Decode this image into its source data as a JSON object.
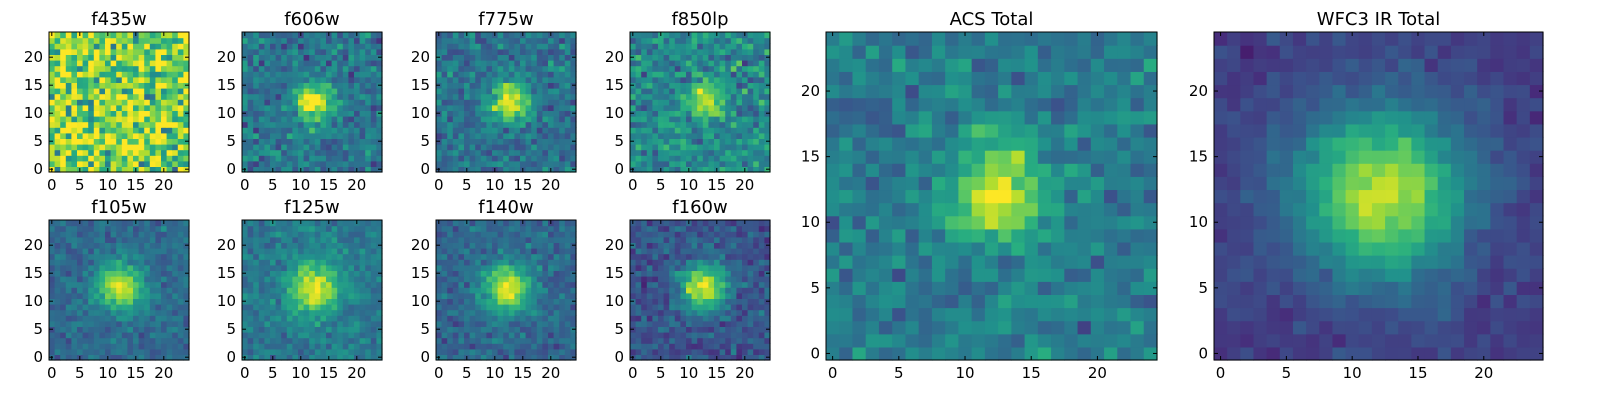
{
  "figure": {
    "colormap": "viridis",
    "panels_note": "Postage-stamp cutouts of one source in eight HST filters plus stacked ACS and WFC3 IR totals"
  },
  "chart_data": [
    {
      "type": "heatmap",
      "title": "f435w",
      "grid_size": 25,
      "xlim": [
        0,
        25
      ],
      "ylim": [
        0,
        25
      ],
      "xticks": [
        0,
        5,
        10,
        15,
        20
      ],
      "yticks": [
        0,
        5,
        10,
        15,
        20
      ],
      "center": [
        12,
        12
      ],
      "peak_amplitude": 0.0,
      "width_sigma": 3.2,
      "background": 0.8,
      "noise": 0.28
    },
    {
      "type": "heatmap",
      "title": "f606w",
      "grid_size": 25,
      "xlim": [
        0,
        25
      ],
      "ylim": [
        0,
        25
      ],
      "xticks": [
        0,
        5,
        10,
        15,
        20
      ],
      "yticks": [
        0,
        5,
        10,
        15,
        20
      ],
      "center": [
        12.3,
        12.0
      ],
      "peak_amplitude": 0.62,
      "width_sigma": 2.3,
      "background": 0.38,
      "noise": 0.13
    },
    {
      "type": "heatmap",
      "title": "f775w",
      "grid_size": 25,
      "xlim": [
        0,
        25
      ],
      "ylim": [
        0,
        25
      ],
      "xticks": [
        0,
        5,
        10,
        15,
        20
      ],
      "yticks": [
        0,
        5,
        10,
        15,
        20
      ],
      "center": [
        12.5,
        12.2
      ],
      "peak_amplitude": 0.6,
      "width_sigma": 2.4,
      "background": 0.38,
      "noise": 0.12
    },
    {
      "type": "heatmap",
      "title": "f850lp",
      "grid_size": 25,
      "xlim": [
        0,
        25
      ],
      "ylim": [
        0,
        25
      ],
      "xticks": [
        0,
        5,
        10,
        15,
        20
      ],
      "yticks": [
        0,
        5,
        10,
        15,
        20
      ],
      "center": [
        12.8,
        12.2
      ],
      "peak_amplitude": 0.5,
      "width_sigma": 2.2,
      "background": 0.47,
      "noise": 0.15
    },
    {
      "type": "heatmap",
      "title": "f105w",
      "grid_size": 25,
      "xlim": [
        0,
        25
      ],
      "ylim": [
        0,
        25
      ],
      "xticks": [
        0,
        5,
        10,
        15,
        20
      ],
      "yticks": [
        0,
        5,
        10,
        15,
        20
      ],
      "center": [
        12.2,
        12.6
      ],
      "peak_amplitude": 0.6,
      "width_sigma": 3.0,
      "background": 0.34,
      "noise": 0.08
    },
    {
      "type": "heatmap",
      "title": "f125w",
      "grid_size": 25,
      "xlim": [
        0,
        25
      ],
      "ylim": [
        0,
        25
      ],
      "xticks": [
        0,
        5,
        10,
        15,
        20
      ],
      "yticks": [
        0,
        5,
        10,
        15,
        20
      ],
      "center": [
        12.5,
        12.3
      ],
      "peak_amplitude": 0.55,
      "width_sigma": 3.2,
      "background": 0.4,
      "noise": 0.09
    },
    {
      "type": "heatmap",
      "title": "f140w",
      "grid_size": 25,
      "xlim": [
        0,
        25
      ],
      "ylim": [
        0,
        25
      ],
      "xticks": [
        0,
        5,
        10,
        15,
        20
      ],
      "yticks": [
        0,
        5,
        10,
        15,
        20
      ],
      "center": [
        12.3,
        12.3
      ],
      "peak_amplitude": 0.62,
      "width_sigma": 3.0,
      "background": 0.33,
      "noise": 0.09
    },
    {
      "type": "heatmap",
      "title": "f160w",
      "grid_size": 25,
      "xlim": [
        0,
        25
      ],
      "ylim": [
        0,
        25
      ],
      "xticks": [
        0,
        5,
        10,
        15,
        20
      ],
      "yticks": [
        0,
        5,
        10,
        15,
        20
      ],
      "center": [
        12.6,
        12.5
      ],
      "peak_amplitude": 0.7,
      "width_sigma": 2.8,
      "background": 0.26,
      "noise": 0.1
    },
    {
      "type": "heatmap",
      "title": "ACS Total",
      "grid_size": 25,
      "xlim": [
        0,
        25
      ],
      "ylim": [
        0,
        25
      ],
      "xticks": [
        0,
        5,
        10,
        15,
        20
      ],
      "yticks": [
        0,
        5,
        10,
        15,
        20
      ],
      "center": [
        12.5,
        12.3
      ],
      "peak_amplitude": 0.55,
      "width_sigma": 2.5,
      "background": 0.42,
      "noise": 0.11
    },
    {
      "type": "heatmap",
      "title": "WFC3 IR Total",
      "grid_size": 25,
      "xlim": [
        0,
        25
      ],
      "ylim": [
        0,
        25
      ],
      "xticks": [
        0,
        5,
        10,
        15,
        20
      ],
      "yticks": [
        0,
        5,
        10,
        15,
        20
      ],
      "center": [
        12.3,
        12.2
      ],
      "peak_amplitude": 0.7,
      "width_sigma": 4.6,
      "background": 0.18,
      "noise": 0.05
    }
  ]
}
